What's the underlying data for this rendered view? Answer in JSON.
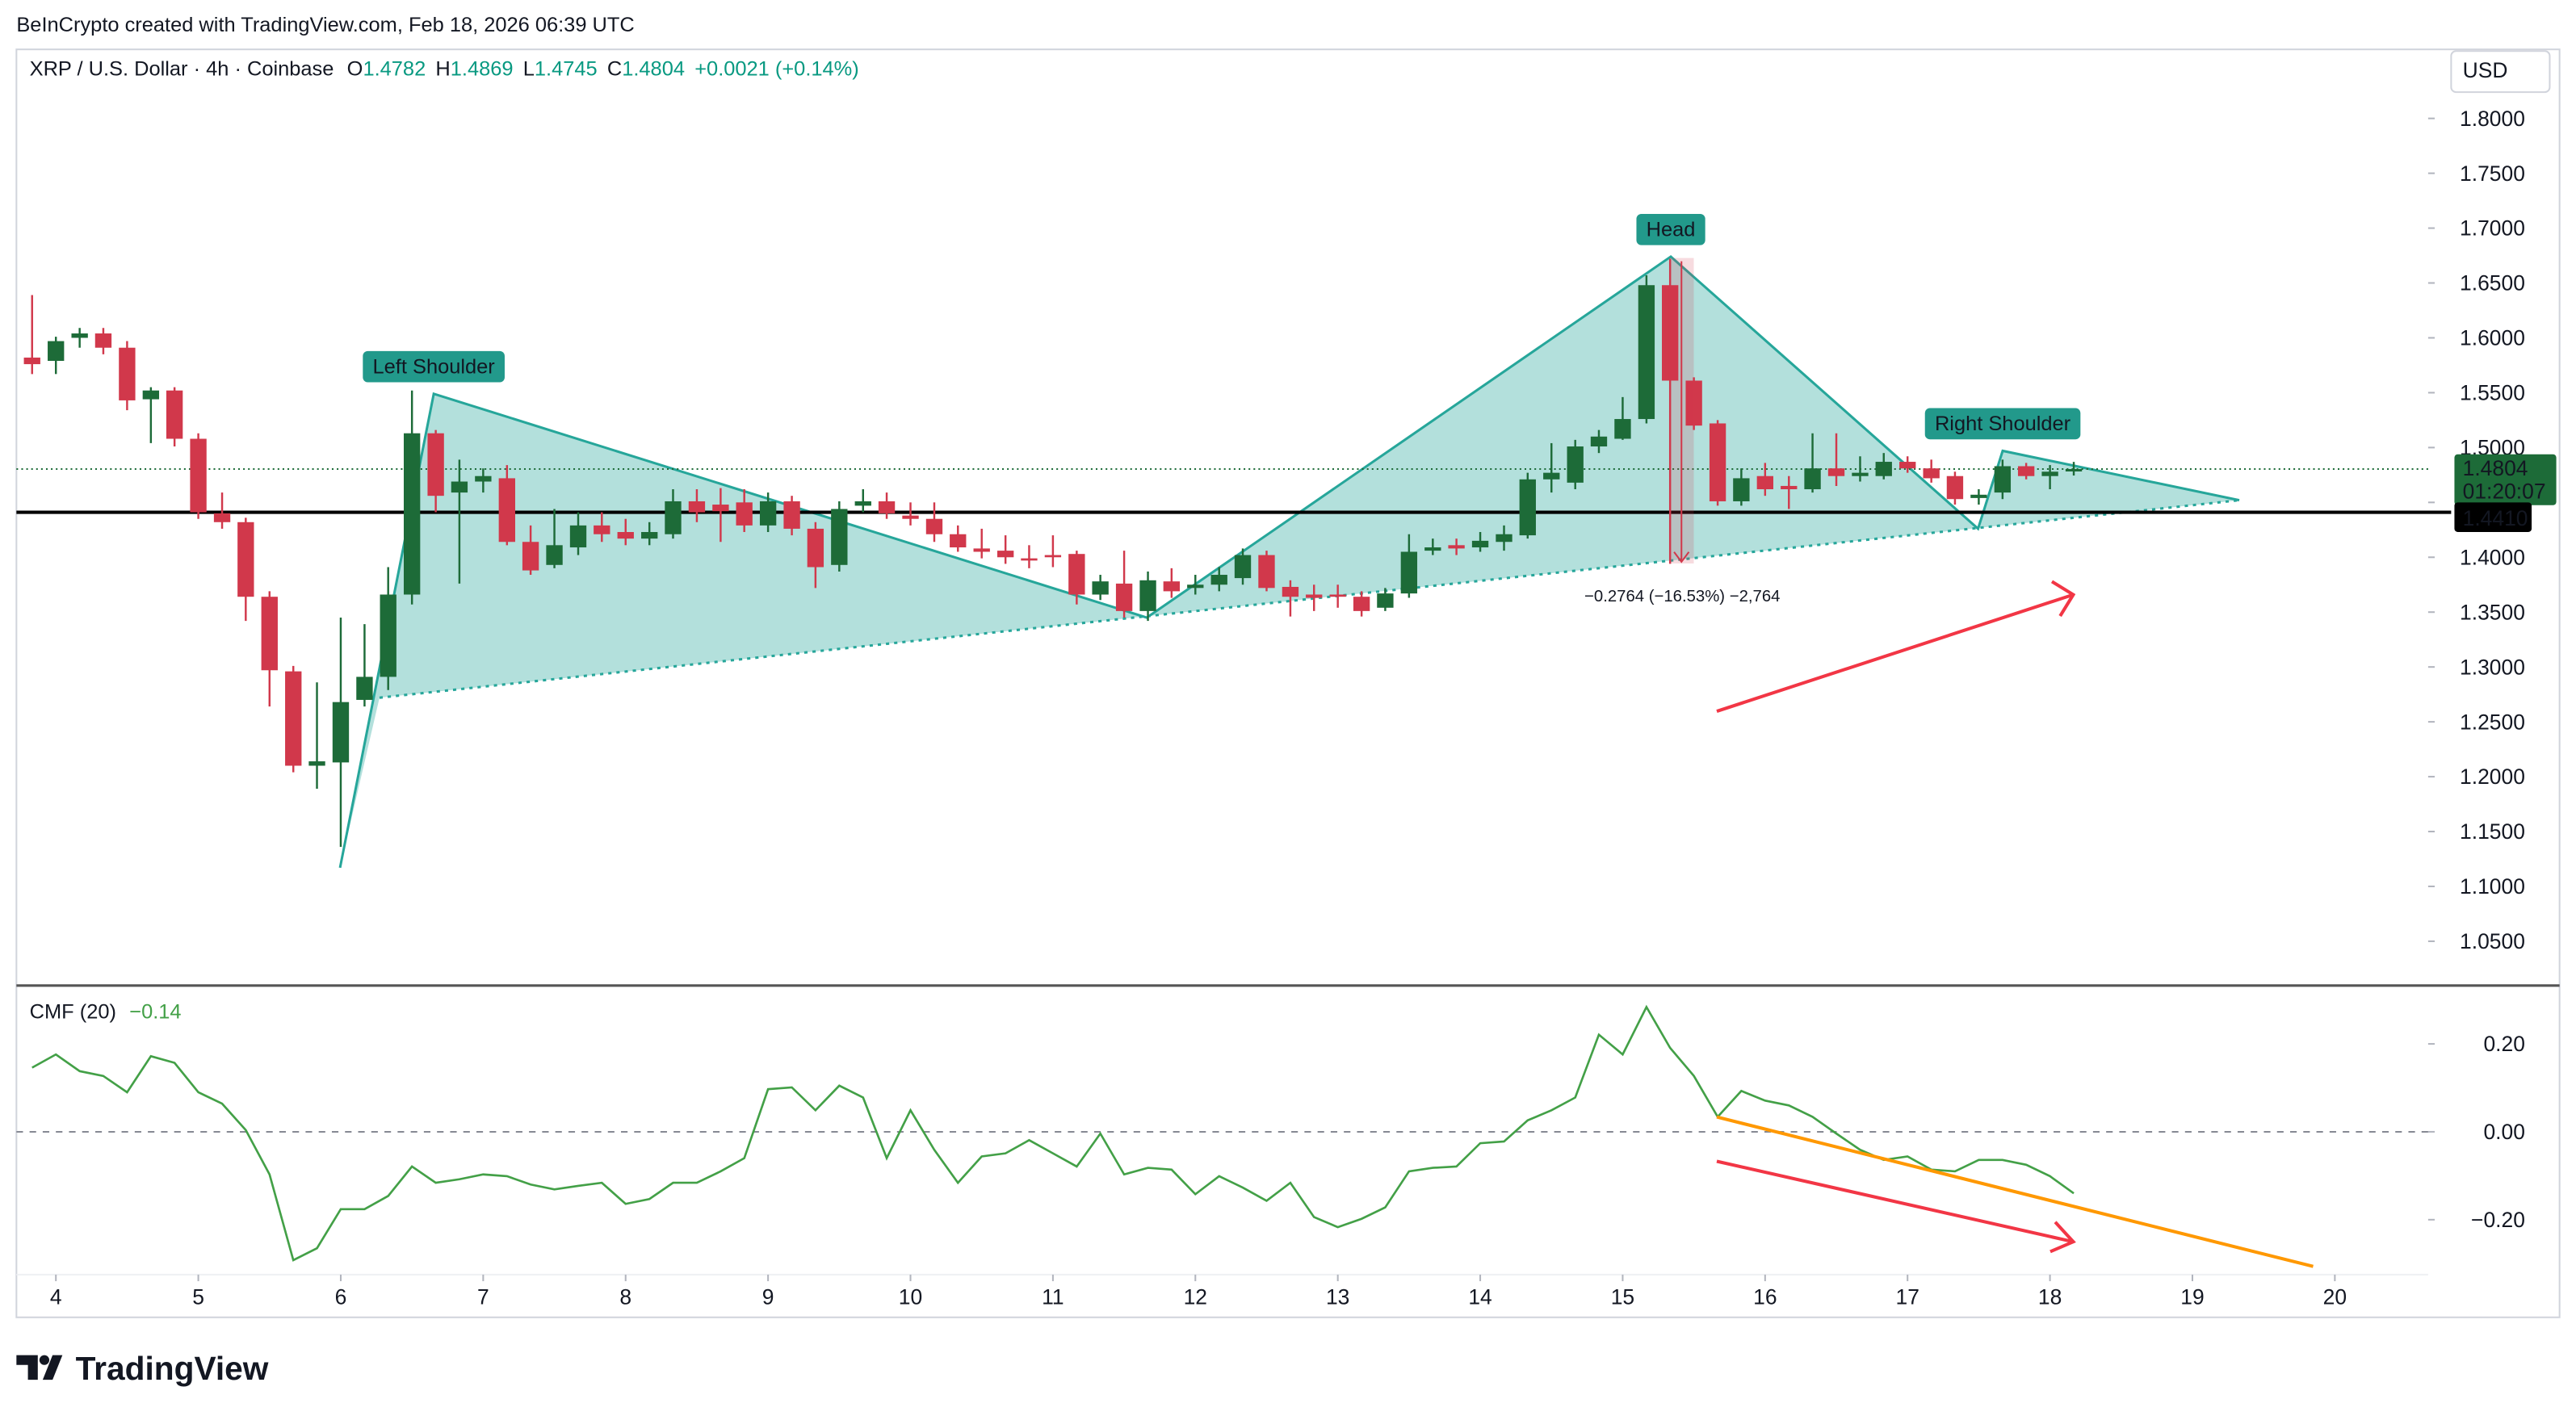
{
  "header": {
    "credit": "BeInCrypto created with TradingView.com, Feb 18, 2026 06:39 UTC",
    "logo": "TradingView"
  },
  "chart_data": [
    {
      "type": "candlestick",
      "title": "XRP / U.S. Dollar · 4h · Coinbase",
      "ohlc_labels": [
        "O",
        "H",
        "L",
        "C"
      ],
      "change": "+0.0021 (+0.14%)",
      "currency": "USD",
      "up_color": "#1d6b38",
      "down_color": "#d1384b",
      "x": [
        3.833,
        4,
        4.167,
        4.333,
        4.5,
        4.667,
        4.833,
        5,
        5.167,
        5.333,
        5.5,
        5.667,
        5.833,
        6,
        6.167,
        6.333,
        6.5,
        6.667,
        6.833,
        7,
        7.167,
        7.333,
        7.5,
        7.667,
        7.833,
        8,
        8.167,
        8.333,
        8.5,
        8.667,
        8.833,
        9,
        9.167,
        9.333,
        9.5,
        9.667,
        9.833,
        10,
        10.167,
        10.333,
        10.5,
        10.667,
        10.833,
        11,
        11.167,
        11.333,
        11.5,
        11.667,
        11.833,
        12,
        12.167,
        12.333,
        12.5,
        12.667,
        12.833,
        13,
        13.167,
        13.333,
        13.5,
        13.667,
        13.833,
        14,
        14.167,
        14.333,
        14.5,
        14.667,
        14.833,
        15,
        15.167,
        15.333,
        15.5,
        15.667,
        15.833,
        16,
        16.167,
        16.333,
        16.5,
        16.667,
        16.833,
        17,
        17.167,
        17.333,
        17.5,
        17.667,
        17.833,
        18,
        18.167
      ],
      "open": [
        1.582,
        1.579,
        1.6,
        1.604,
        1.591,
        1.544,
        1.552,
        1.508,
        1.44,
        1.432,
        1.364,
        1.296,
        1.21,
        1.213,
        1.27,
        1.291,
        1.366,
        1.513,
        1.459,
        1.469,
        1.472,
        1.414,
        1.393,
        1.409,
        1.429,
        1.423,
        1.417,
        1.421,
        1.451,
        1.448,
        1.45,
        1.429,
        1.451,
        1.426,
        1.393,
        1.447,
        1.451,
        1.438,
        1.435,
        1.421,
        1.408,
        1.406,
        1.399,
        1.402,
        1.403,
        1.366,
        1.376,
        1.351,
        1.378,
        1.372,
        1.375,
        1.381,
        1.402,
        1.373,
        1.366,
        1.366,
        1.364,
        1.354,
        1.367,
        1.406,
        1.411,
        1.409,
        1.414,
        1.42,
        1.471,
        1.468,
        1.501,
        1.508,
        1.526,
        1.648,
        1.561,
        1.522,
        1.451,
        1.474,
        1.465,
        1.462,
        1.481,
        1.474,
        1.474,
        1.487,
        1.481,
        1.474,
        1.454,
        1.459,
        1.483,
        1.474,
        1.4782
      ],
      "high": [
        1.639,
        1.601,
        1.609,
        1.609,
        1.597,
        1.555,
        1.555,
        1.513,
        1.459,
        1.436,
        1.369,
        1.301,
        1.286,
        1.345,
        1.339,
        1.391,
        1.552,
        1.516,
        1.489,
        1.481,
        1.484,
        1.429,
        1.444,
        1.441,
        1.441,
        1.435,
        1.432,
        1.462,
        1.462,
        1.463,
        1.462,
        1.459,
        1.456,
        1.432,
        1.451,
        1.462,
        1.459,
        1.45,
        1.45,
        1.429,
        1.426,
        1.42,
        1.411,
        1.42,
        1.406,
        1.384,
        1.406,
        1.387,
        1.39,
        1.384,
        1.391,
        1.408,
        1.406,
        1.379,
        1.375,
        1.375,
        1.369,
        1.372,
        1.421,
        1.417,
        1.417,
        1.423,
        1.429,
        1.477,
        1.504,
        1.507,
        1.516,
        1.546,
        1.657,
        1.672,
        1.564,
        1.525,
        1.481,
        1.486,
        1.474,
        1.513,
        1.513,
        1.492,
        1.495,
        1.492,
        1.489,
        1.478,
        1.462,
        1.489,
        1.486,
        1.484,
        1.4869
      ],
      "low": [
        1.567,
        1.567,
        1.591,
        1.585,
        1.534,
        1.504,
        1.501,
        1.435,
        1.426,
        1.342,
        1.264,
        1.204,
        1.189,
        1.136,
        1.264,
        1.279,
        1.357,
        1.441,
        1.376,
        1.459,
        1.411,
        1.384,
        1.39,
        1.402,
        1.414,
        1.411,
        1.411,
        1.417,
        1.432,
        1.414,
        1.423,
        1.423,
        1.42,
        1.372,
        1.387,
        1.441,
        1.435,
        1.429,
        1.414,
        1.405,
        1.399,
        1.394,
        1.39,
        1.391,
        1.357,
        1.361,
        1.345,
        1.342,
        1.363,
        1.366,
        1.369,
        1.375,
        1.369,
        1.346,
        1.351,
        1.354,
        1.346,
        1.351,
        1.363,
        1.402,
        1.402,
        1.405,
        1.406,
        1.417,
        1.459,
        1.462,
        1.495,
        1.507,
        1.522,
        1.394,
        1.516,
        1.447,
        1.447,
        1.456,
        1.444,
        1.459,
        1.465,
        1.469,
        1.471,
        1.477,
        1.468,
        1.448,
        1.448,
        1.453,
        1.471,
        1.462,
        1.4745
      ],
      "close": [
        1.576,
        1.597,
        1.604,
        1.591,
        1.543,
        1.552,
        1.508,
        1.441,
        1.432,
        1.364,
        1.297,
        1.21,
        1.214,
        1.268,
        1.291,
        1.366,
        1.513,
        1.456,
        1.469,
        1.474,
        1.414,
        1.388,
        1.411,
        1.429,
        1.421,
        1.417,
        1.423,
        1.451,
        1.441,
        1.442,
        1.429,
        1.451,
        1.426,
        1.391,
        1.444,
        1.451,
        1.44,
        1.435,
        1.421,
        1.409,
        1.405,
        1.4,
        1.397,
        1.4,
        1.366,
        1.378,
        1.351,
        1.379,
        1.369,
        1.375,
        1.384,
        1.402,
        1.372,
        1.364,
        1.363,
        1.364,
        1.351,
        1.367,
        1.405,
        1.409,
        1.408,
        1.415,
        1.421,
        1.471,
        1.477,
        1.501,
        1.51,
        1.526,
        1.648,
        1.561,
        1.52,
        1.451,
        1.472,
        1.462,
        1.462,
        1.481,
        1.474,
        1.477,
        1.487,
        1.481,
        1.472,
        1.453,
        1.457,
        1.483,
        1.474,
        1.478,
        1.4804
      ],
      "xlim": [
        3.723,
        20.655
      ],
      "ylim": [
        1.0126,
        1.8629
      ],
      "yticks": [
        {
          "value": 1.8,
          "label": "1.8000"
        },
        {
          "value": 1.75,
          "label": "1.7500"
        },
        {
          "value": 1.7,
          "label": "1.7000"
        },
        {
          "value": 1.65,
          "label": "1.6500"
        },
        {
          "value": 1.6,
          "label": "1.6000"
        },
        {
          "value": 1.55,
          "label": "1.5500"
        },
        {
          "value": 1.5,
          "label": "1.5000"
        },
        {
          "value": 1.45,
          "label": "1.4500"
        },
        {
          "value": 1.4,
          "label": "1.4000"
        },
        {
          "value": 1.35,
          "label": "1.3500"
        },
        {
          "value": 1.3,
          "label": "1.3000"
        },
        {
          "value": 1.25,
          "label": "1.2500"
        },
        {
          "value": 1.2,
          "label": "1.2000"
        },
        {
          "value": 1.15,
          "label": "1.1500"
        },
        {
          "value": 1.1,
          "label": "1.1000"
        },
        {
          "value": 1.05,
          "label": "1.0500"
        }
      ],
      "countdown": "01:20:07",
      "neckline": {
        "value": 1.441,
        "label": "1.4410"
      },
      "pattern": {
        "x": [
          5.995,
          6.653,
          11.659,
          15.338,
          17.495,
          17.668,
          19.329
        ],
        "y": [
          1.117,
          1.549,
          1.345,
          1.674,
          1.426,
          1.497,
          1.452
        ],
        "base_x": [
          6.272,
          19.329
        ],
        "base_y": [
          1.272,
          1.452
        ],
        "labels": [
          "Left Shoulder",
          "Head",
          "Right Shoulder"
        ],
        "color": "#26a69a"
      },
      "measure_label": "−0.2764 (−16.53%) −2,764"
    },
    {
      "type": "line",
      "series": [
        {
          "name": "CMF (20)",
          "color": "#43a047",
          "last_value_label": "−0.14",
          "values": [
            0.146,
            0.176,
            0.138,
            0.127,
            0.09,
            0.172,
            0.157,
            0.09,
            0.064,
            0.004,
            -0.097,
            -0.292,
            -0.265,
            -0.176,
            -0.176,
            -0.146,
            -0.079,
            -0.116,
            -0.108,
            -0.097,
            -0.101,
            -0.12,
            -0.131,
            -0.123,
            -0.116,
            -0.164,
            -0.153,
            -0.116,
            -0.116,
            -0.09,
            -0.06,
            0.097,
            0.101,
            0.049,
            0.105,
            0.078,
            -0.06,
            0.049,
            -0.041,
            -0.116,
            -0.056,
            -0.049,
            -0.019,
            -0.049,
            -0.079,
            -0.004,
            -0.097,
            -0.082,
            -0.086,
            -0.142,
            -0.101,
            -0.127,
            -0.157,
            -0.116,
            -0.194,
            -0.217,
            -0.198,
            -0.172,
            -0.09,
            -0.082,
            -0.079,
            -0.026,
            -0.022,
            0.026,
            0.049,
            0.078,
            0.221,
            0.176,
            0.284,
            0.191,
            0.127,
            0.034,
            0.093,
            0.071,
            0.06,
            0.034,
            -0.004,
            -0.041,
            -0.064,
            -0.056,
            -0.086,
            -0.09,
            -0.064,
            -0.064,
            -0.075,
            -0.101,
            -0.14
          ]
        }
      ],
      "ylim": [
        -0.325,
        0.329
      ],
      "yticks": [
        {
          "value": 0.2,
          "label": "0.20"
        },
        {
          "value": 0,
          "label": "0.00"
        },
        {
          "value": -0.2,
          "label": "−0.20"
        }
      ],
      "hline": 0,
      "xticks": [
        4,
        5,
        6,
        7,
        8,
        9,
        10,
        11,
        12,
        13,
        14,
        15,
        16,
        17,
        18,
        19,
        20
      ]
    }
  ]
}
